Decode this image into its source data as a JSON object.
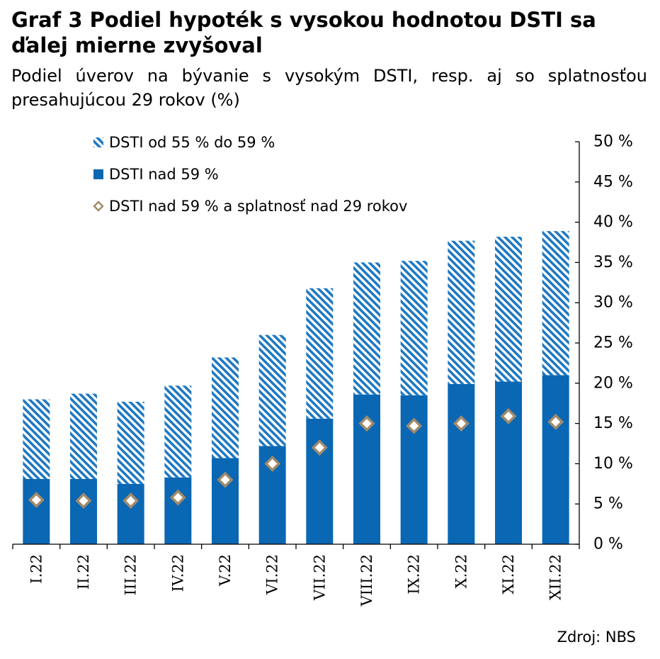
{
  "header": {
    "title": "Graf 3 Podiel hypoték s vysokou hodnotou DSTI sa ďalej mierne zvyšoval",
    "subtitle": "Podiel úverov na bývanie s vysokým DSTI, resp. aj so splatnosťou presahujúcou 29 rokov (%)"
  },
  "footer": {
    "source": "Zdroj: NBS"
  },
  "colors": {
    "bar": "#0a67b3",
    "hatch": "#1e78c2",
    "marker_border": "#a08a6c",
    "marker_fill": "#ffffff",
    "axis": "#000000"
  },
  "chart_data": {
    "type": "bar",
    "stacked": true,
    "categories": [
      "I.22",
      "II.22",
      "III.22",
      "IV.22",
      "V.22",
      "VI.22",
      "VII.22",
      "VIII.22",
      "IX.22",
      "X.22",
      "XI.22",
      "XII.22"
    ],
    "series": [
      {
        "name": "DSTI nad 59 %",
        "kind": "bar",
        "style": "solid",
        "values": [
          8.1,
          8.1,
          7.5,
          8.3,
          10.7,
          12.2,
          15.6,
          18.6,
          18.5,
          19.9,
          20.2,
          21.0
        ]
      },
      {
        "name": "DSTI od 55 % do 59 %",
        "kind": "bar",
        "style": "hatched",
        "values": [
          9.9,
          10.6,
          10.2,
          11.4,
          12.5,
          13.8,
          16.2,
          16.4,
          16.7,
          17.8,
          18.0,
          17.9
        ]
      },
      {
        "name": "DSTI nad 59 % a splatnosť nad 29 rokov",
        "kind": "marker",
        "style": "diamond",
        "values": [
          5.5,
          5.4,
          5.4,
          5.8,
          8.0,
          10.0,
          12.0,
          15.0,
          14.7,
          15.0,
          15.9,
          15.2
        ]
      }
    ],
    "legend_order": [
      1,
      0,
      2
    ],
    "legend_position": "top-left",
    "y_axis": {
      "side": "right",
      "ylim": [
        0,
        50
      ],
      "step": 5,
      "tick_labels": [
        "0 %",
        "5 %",
        "10 %",
        "15 %",
        "20 %",
        "25 %",
        "30 %",
        "35 %",
        "40 %",
        "45 %",
        "50 %"
      ]
    },
    "x_tick_rotation": "vertical",
    "grid": false
  }
}
